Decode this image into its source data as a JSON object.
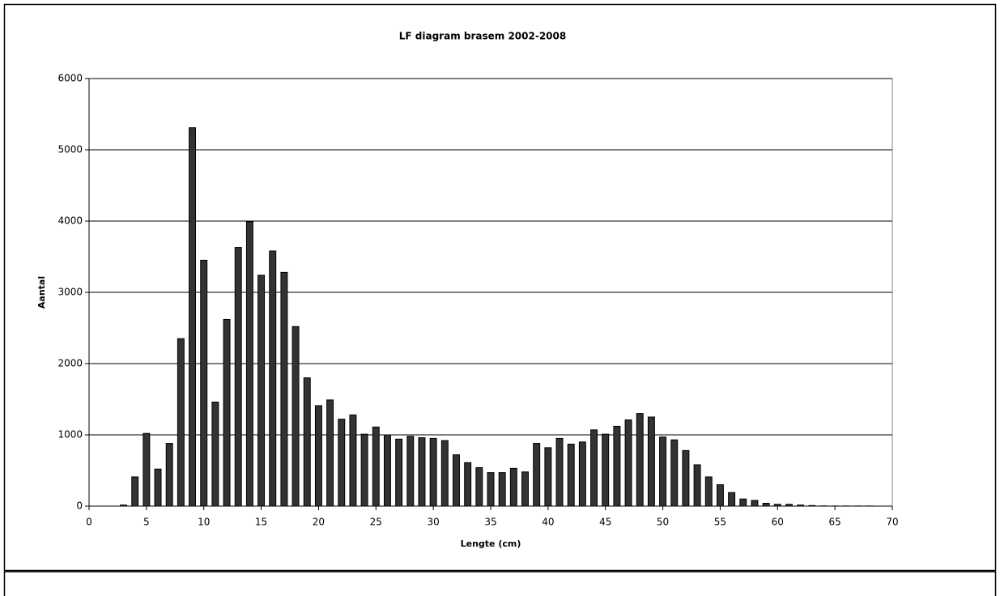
{
  "chart_data": {
    "type": "bar",
    "title": "LF diagram brasem 2002-2008",
    "x_label": "Lengte (cm)",
    "y_label": "Aantal",
    "x": [
      3,
      4,
      5,
      6,
      7,
      8,
      9,
      10,
      11,
      12,
      13,
      14,
      15,
      16,
      17,
      18,
      19,
      20,
      21,
      22,
      23,
      24,
      25,
      26,
      27,
      28,
      29,
      30,
      31,
      32,
      33,
      34,
      35,
      36,
      37,
      38,
      39,
      40,
      41,
      42,
      43,
      44,
      45,
      46,
      47,
      48,
      49,
      50,
      51,
      52,
      53,
      54,
      55,
      56,
      57,
      58,
      59,
      60,
      61,
      62,
      63,
      64,
      65,
      66,
      67,
      68
    ],
    "values": [
      15,
      410,
      1020,
      520,
      880,
      2350,
      5310,
      3450,
      1460,
      2620,
      3630,
      3990,
      3240,
      3580,
      3280,
      2520,
      1800,
      1410,
      1490,
      1220,
      1280,
      1010,
      1110,
      1000,
      940,
      980,
      960,
      950,
      920,
      720,
      610,
      540,
      470,
      470,
      530,
      480,
      880,
      820,
      950,
      870,
      900,
      1070,
      1010,
      1120,
      1210,
      1300,
      1250,
      970,
      930,
      780,
      580,
      410,
      300,
      190,
      100,
      80,
      40,
      25,
      25,
      15,
      8,
      3,
      2,
      2,
      2,
      2
    ],
    "color": "#333333",
    "xlim": [
      0,
      70
    ],
    "xticks": [
      0,
      5,
      10,
      15,
      20,
      25,
      30,
      35,
      40,
      45,
      50,
      55,
      60,
      65,
      70
    ],
    "ylim": [
      0,
      6000
    ],
    "yticks": [
      0,
      1000,
      2000,
      3000,
      4000,
      5000,
      6000
    ],
    "grid": true
  }
}
